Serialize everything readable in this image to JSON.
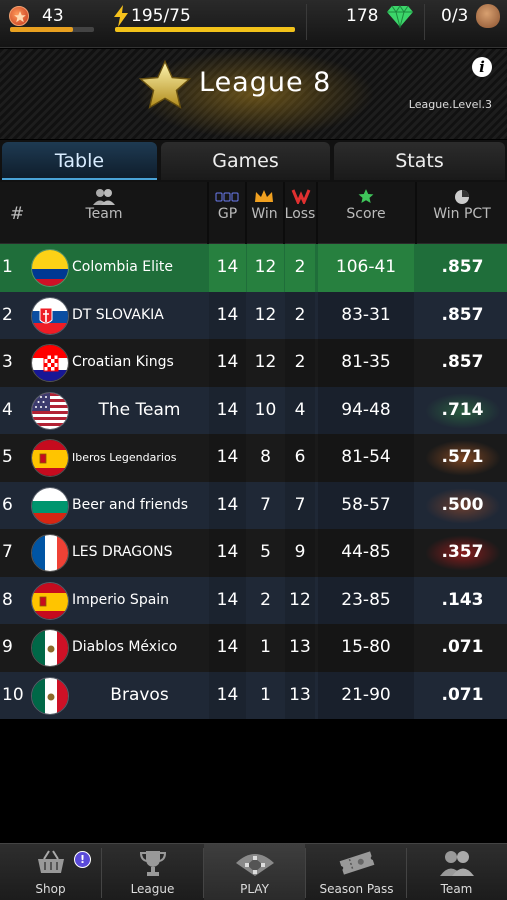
{
  "status": {
    "level": "43",
    "xp_progress": 0.75,
    "energy": "195/75",
    "energy_progress": 1.0,
    "gems": "178",
    "balls": "0/3",
    "icons": [
      "level-star-icon",
      "lightning-bolt-icon",
      "gem-icon",
      "glove-icon"
    ]
  },
  "league": {
    "title": "League 8",
    "level_label": "League.Level.3"
  },
  "tabs": [
    {
      "label": "Table",
      "active": true
    },
    {
      "label": "Games",
      "active": false
    },
    {
      "label": "Stats",
      "active": false
    }
  ],
  "table": {
    "headers": {
      "rank": "#",
      "team": "Team",
      "gp": "GP",
      "win": "Win",
      "loss": "Loss",
      "score": "Score",
      "pct": "Win PCT"
    },
    "rows": [
      {
        "rank": "1",
        "team": "Colombia Elite",
        "flag": "colombia",
        "gp": "14",
        "win": "12",
        "loss": "2",
        "score": "106-41",
        "pct": ".857"
      },
      {
        "rank": "2",
        "team": "DT SLOVAKIA",
        "flag": "slovakia",
        "gp": "14",
        "win": "12",
        "loss": "2",
        "score": "83-31",
        "pct": ".857"
      },
      {
        "rank": "3",
        "team": "Croatian Kings",
        "flag": "croatia",
        "gp": "14",
        "win": "12",
        "loss": "2",
        "score": "81-35",
        "pct": ".857"
      },
      {
        "rank": "4",
        "team": "The Team",
        "flag": "usa",
        "gp": "14",
        "win": "10",
        "loss": "4",
        "score": "94-48",
        "pct": ".714"
      },
      {
        "rank": "5",
        "team": "Iberos Legendarios",
        "flag": "spain",
        "gp": "14",
        "win": "8",
        "loss": "6",
        "score": "81-54",
        "pct": ".571"
      },
      {
        "rank": "6",
        "team": "Beer and friends",
        "flag": "bulgaria",
        "gp": "14",
        "win": "7",
        "loss": "7",
        "score": "58-57",
        "pct": ".500"
      },
      {
        "rank": "7",
        "team": "LES DRAGONS",
        "flag": "france",
        "gp": "14",
        "win": "5",
        "loss": "9",
        "score": "44-85",
        "pct": ".357"
      },
      {
        "rank": "8",
        "team": "Imperio Spain",
        "flag": "spain",
        "gp": "14",
        "win": "2",
        "loss": "12",
        "score": "23-85",
        "pct": ".143"
      },
      {
        "rank": "9",
        "team": "Diablos México",
        "flag": "mexico",
        "gp": "14",
        "win": "1",
        "loss": "13",
        "score": "15-80",
        "pct": ".071"
      },
      {
        "rank": "10",
        "team": "Bravos",
        "flag": "mexico",
        "gp": "14",
        "win": "1",
        "loss": "13",
        "score": "21-90",
        "pct": ".071"
      }
    ]
  },
  "bottom_nav": [
    {
      "label": "Shop",
      "icon": "basket-icon",
      "badge": "!"
    },
    {
      "label": "League",
      "icon": "trophy-icon"
    },
    {
      "label": "PLAY",
      "icon": "baseball-diamond-icon",
      "active": true
    },
    {
      "label": "Season Pass",
      "icon": "ticket-icon"
    },
    {
      "label": "Team",
      "icon": "team-icon"
    }
  ],
  "colors": {
    "first_row": "#1f6e3a",
    "active_tab": "#1e3a52",
    "energy": "#f2c21a",
    "xp": "#e8a020"
  }
}
